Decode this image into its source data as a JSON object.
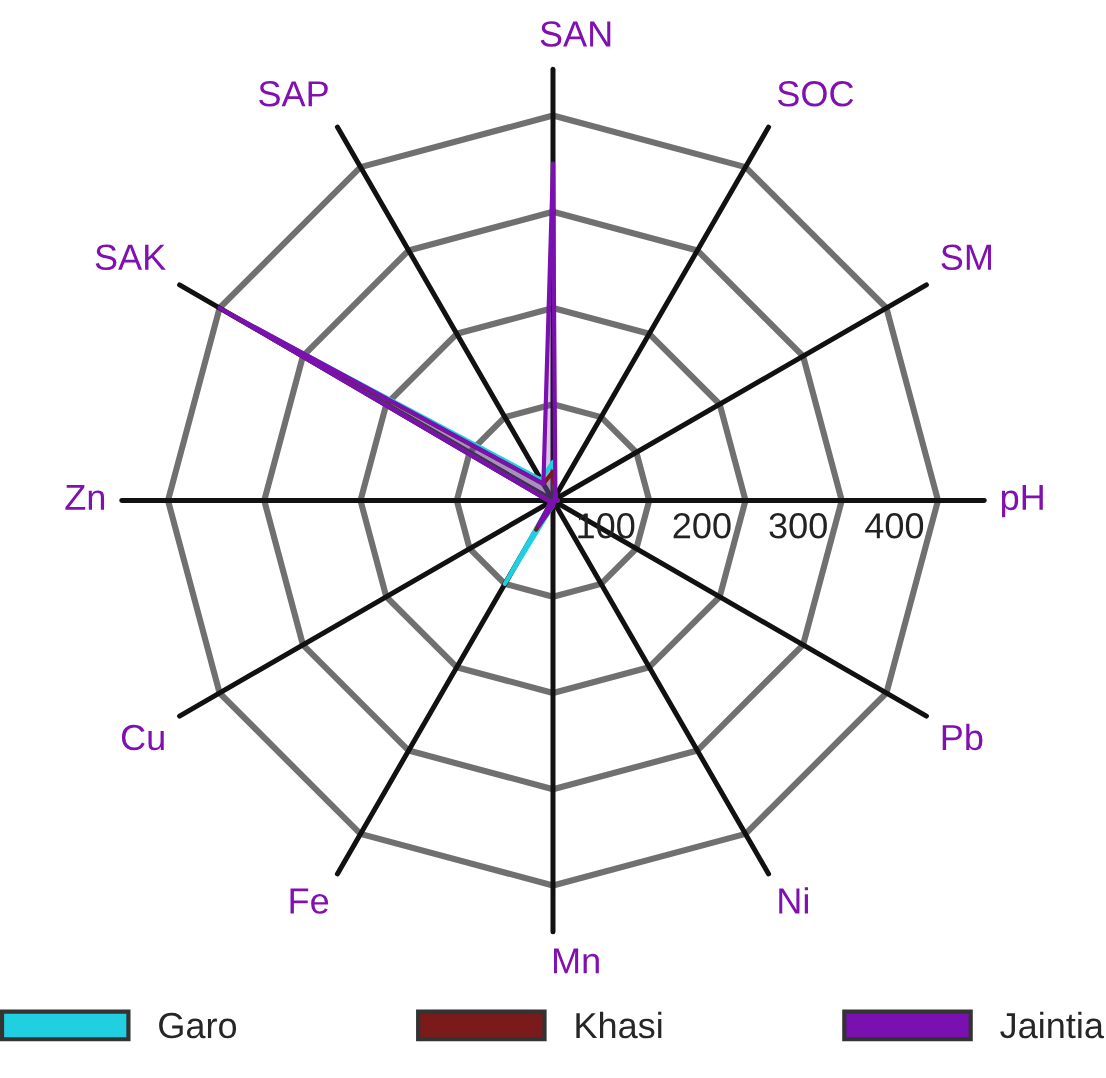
{
  "chart_data": {
    "type": "radar",
    "categories": [
      "SAN",
      "SOC",
      "SM",
      "pH",
      "Pb",
      "Ni",
      "Mn",
      "Fe",
      "Cu",
      "Zn",
      "SAK",
      "SAP"
    ],
    "series": [
      {
        "name": "Garo",
        "color": "#20d0e0",
        "values": [
          40,
          5,
          3,
          5,
          1,
          1,
          5,
          100,
          2,
          5,
          370,
          25
        ]
      },
      {
        "name": "Khasi",
        "color": "#7a1a1a",
        "values": [
          30,
          5,
          3,
          5,
          1,
          1,
          5,
          35,
          2,
          5,
          380,
          20
        ]
      },
      {
        "name": "Jaintia",
        "color": "#7b10b0",
        "values": [
          350,
          5,
          3,
          5,
          1,
          1,
          5,
          30,
          2,
          5,
          400,
          20
        ]
      }
    ],
    "ylim": [
      0,
      400
    ],
    "yticks": [
      100,
      200,
      300,
      400
    ],
    "grid": true,
    "legend": "bottom"
  }
}
